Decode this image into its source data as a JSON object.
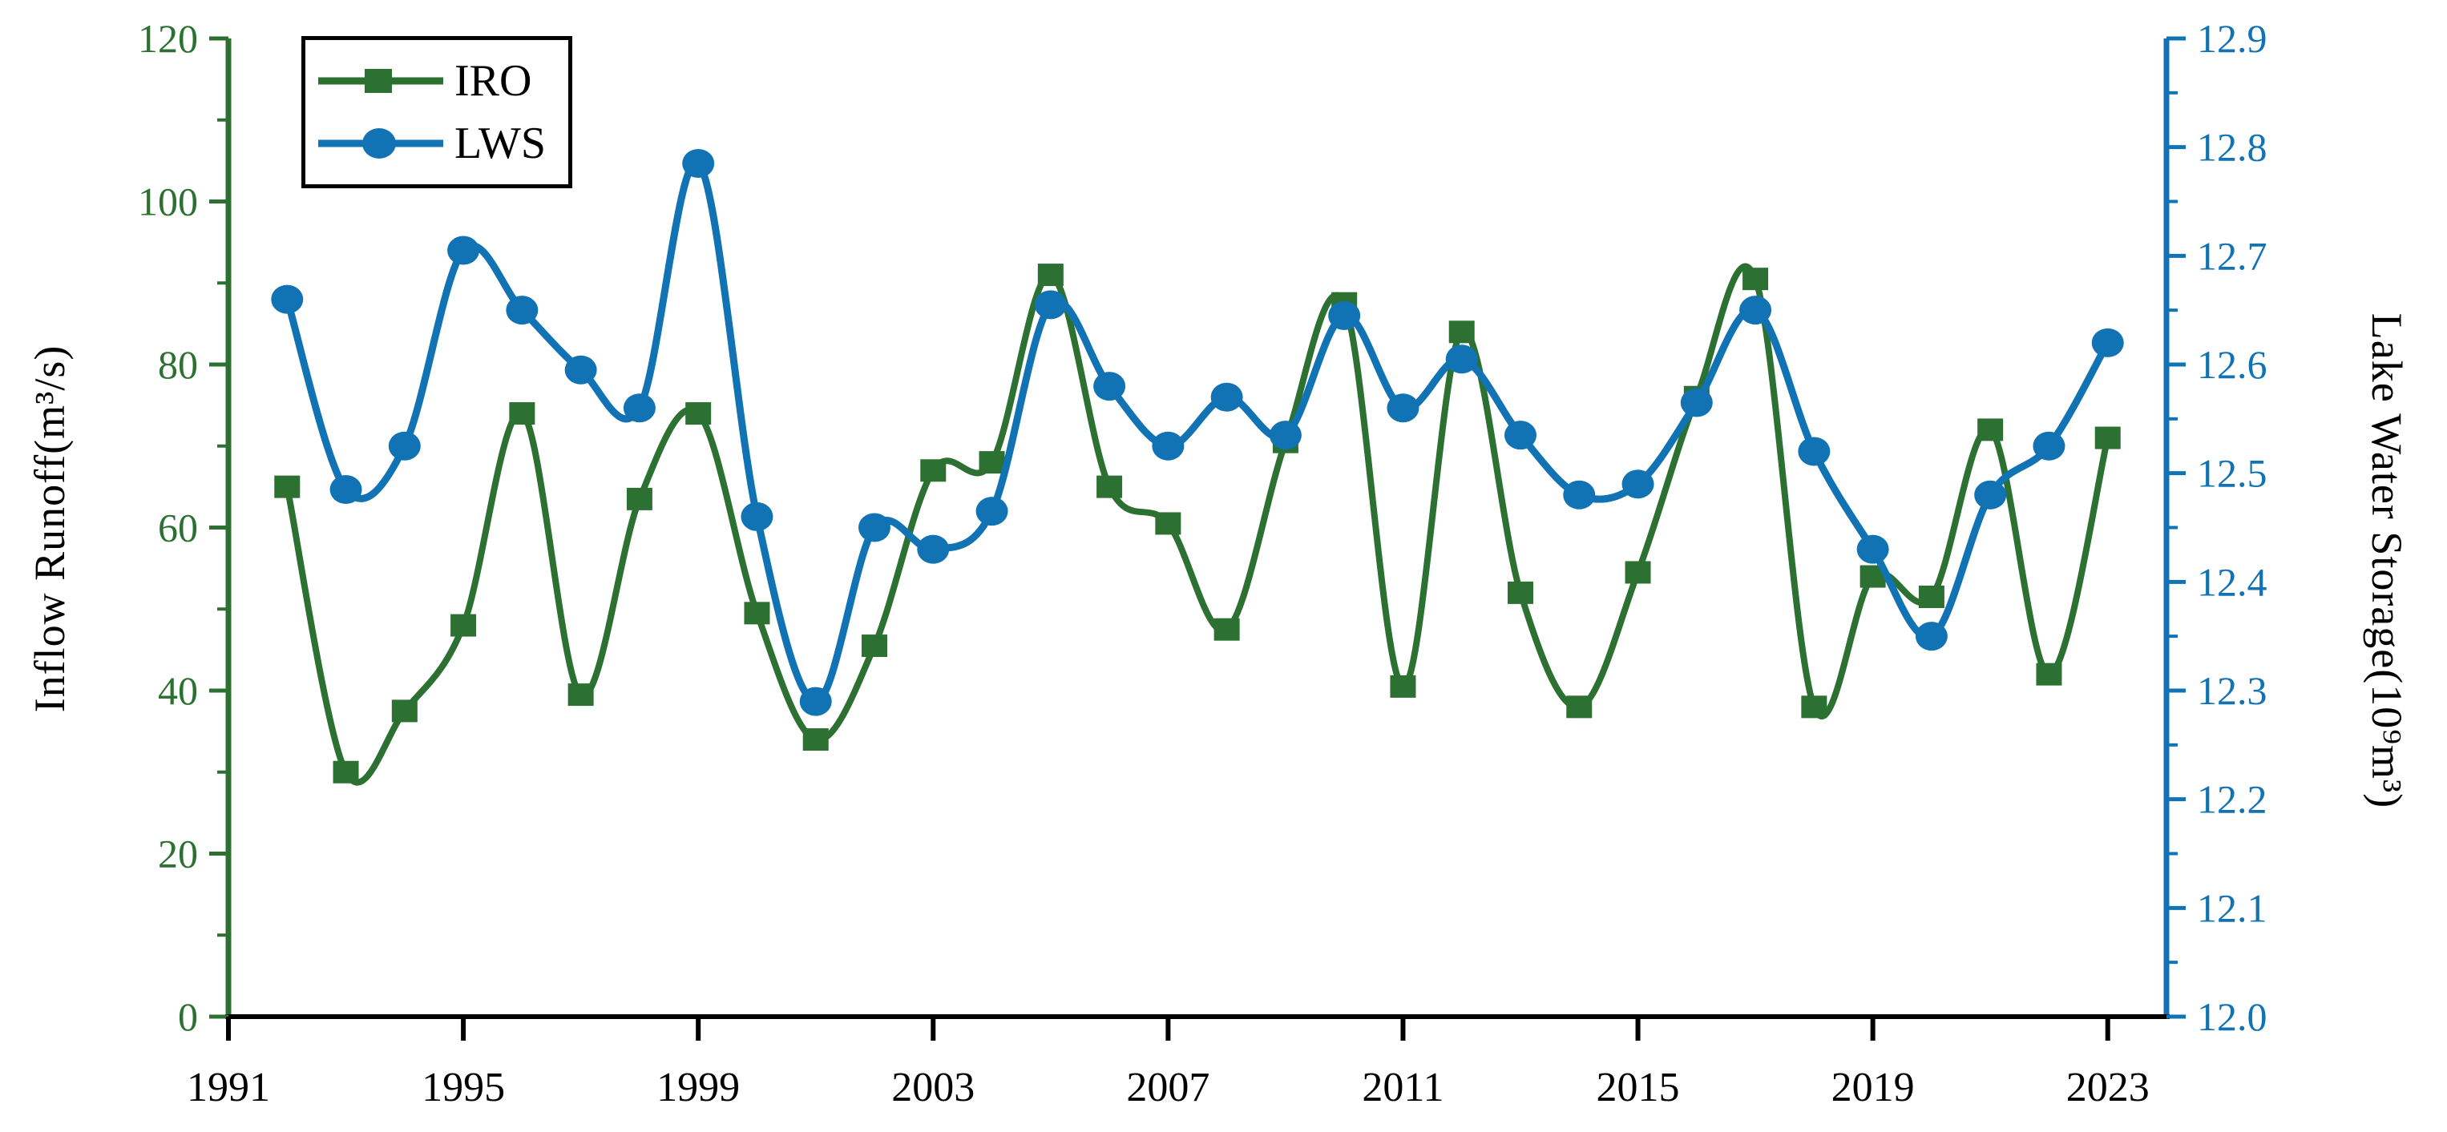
{
  "figure": {
    "background": "#ffffff"
  },
  "legend": {
    "items": [
      {
        "label": "IRO"
      },
      {
        "label": "LWS"
      }
    ]
  },
  "chart_data": {
    "type": "line",
    "title": "",
    "x": [
      1992,
      1993,
      1994,
      1995,
      1996,
      1997,
      1998,
      1999,
      2000,
      2001,
      2002,
      2003,
      2004,
      2005,
      2006,
      2007,
      2008,
      2009,
      2010,
      2011,
      2012,
      2013,
      2014,
      2015,
      2016,
      2017,
      2018,
      2019,
      2020,
      2021,
      2022,
      2023
    ],
    "series": [
      {
        "name": "IRO",
        "axis": "left",
        "color": "#2d7132",
        "marker": "square",
        "line_width": 8,
        "values": [
          65,
          30,
          37.5,
          48,
          74,
          39.5,
          63.5,
          74,
          49.5,
          34,
          45.5,
          67,
          68,
          91,
          65,
          60.5,
          47.5,
          70.5,
          87.5,
          40.5,
          84,
          52,
          38,
          54.5,
          76,
          90.5,
          38,
          54,
          51.5,
          72,
          42,
          71
        ]
      },
      {
        "name": "LWS",
        "axis": "right",
        "color": "#1173b3",
        "marker": "circle",
        "line_width": 9,
        "values": [
          12.66,
          12.485,
          12.525,
          12.705,
          12.65,
          12.595,
          12.56,
          12.785,
          12.46,
          12.29,
          12.45,
          12.43,
          12.465,
          12.655,
          12.58,
          12.525,
          12.57,
          12.535,
          12.645,
          12.56,
          12.605,
          12.535,
          12.48,
          12.49,
          12.565,
          12.65,
          12.52,
          12.43,
          12.35,
          12.48,
          12.525,
          12.62
        ]
      }
    ],
    "left_axis": {
      "label": "Inflow Runoff(m³/s)",
      "min": 0,
      "max": 120,
      "major_step": 20,
      "minor_step": 10,
      "decimals": 0,
      "color": "#2d7132"
    },
    "right_axis": {
      "label": "Lake Water Storage(10⁹m³)",
      "min": 12.0,
      "max": 12.9,
      "major_step": 0.1,
      "minor_step": 0.05,
      "decimals": 1,
      "color": "#1173b3"
    },
    "x_axis": {
      "min": 1991,
      "max": 2024,
      "ticks": [
        1991,
        1995,
        1999,
        2003,
        2007,
        2011,
        2015,
        2019,
        2023
      ],
      "color": "#000000"
    },
    "legend_position": "top-left",
    "grid": false
  }
}
